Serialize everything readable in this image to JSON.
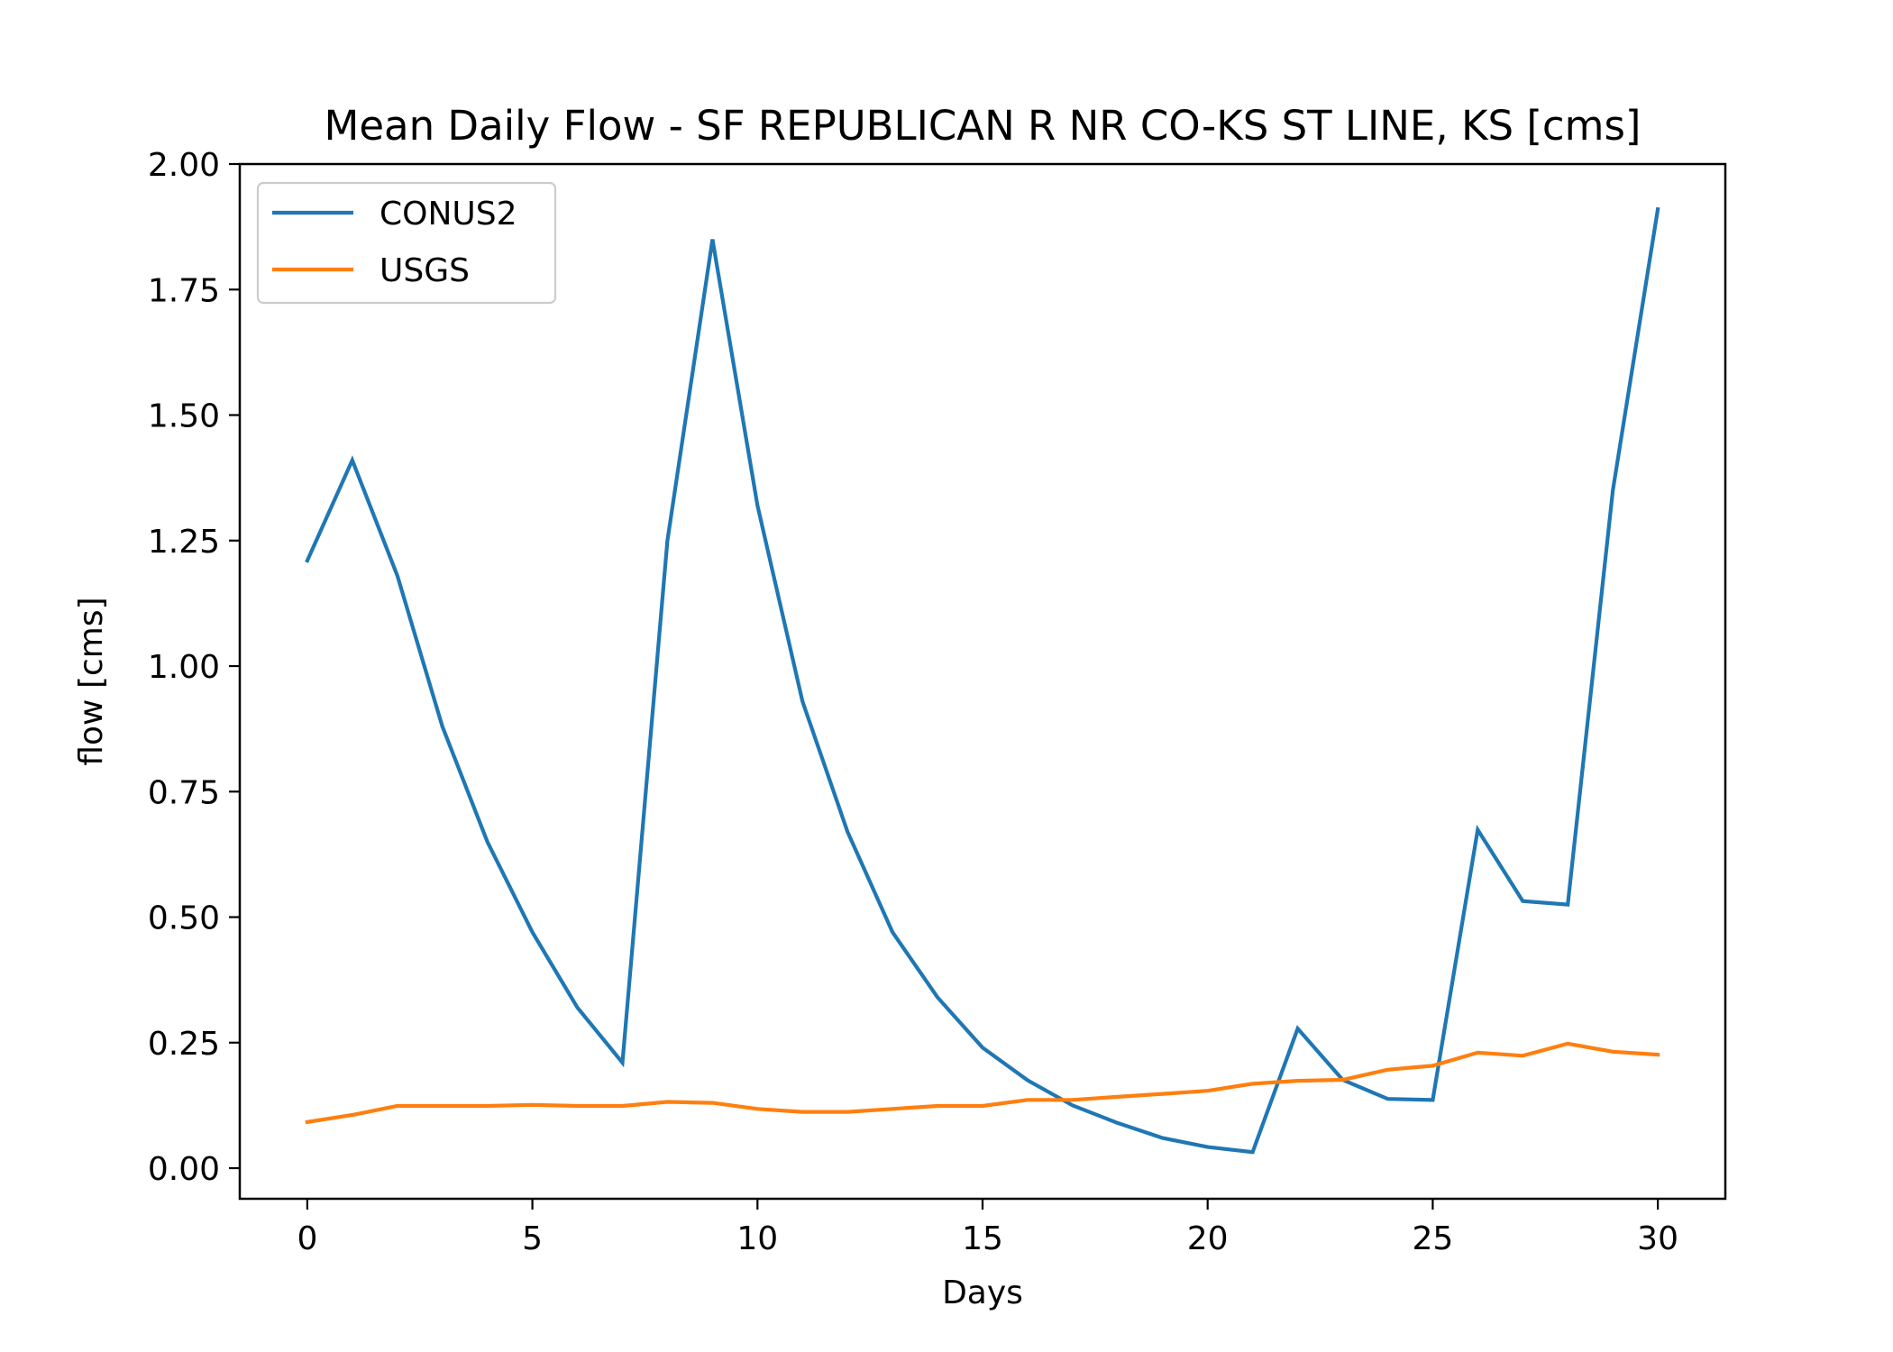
{
  "chart_data": {
    "type": "line",
    "title": "Mean Daily Flow - SF REPUBLICAN R NR CO-KS ST LINE, KS [cms]",
    "xlabel": "Days",
    "ylabel": "flow [cms]",
    "xlim": [
      -1.5,
      31.5
    ],
    "ylim": [
      -0.061,
      2.0
    ],
    "xticks": [
      0,
      5,
      10,
      15,
      20,
      25,
      30
    ],
    "xtick_labels": [
      "0",
      "5",
      "10",
      "15",
      "20",
      "25",
      "30"
    ],
    "yticks": [
      0.0,
      0.25,
      0.5,
      0.75,
      1.0,
      1.25,
      1.5,
      1.75,
      2.0
    ],
    "ytick_labels": [
      "0.00",
      "0.25",
      "0.50",
      "0.75",
      "1.00",
      "1.25",
      "1.50",
      "1.75",
      "2.00"
    ],
    "grid": false,
    "legend_position": "top-left",
    "x": [
      0,
      1,
      2,
      3,
      4,
      5,
      6,
      7,
      8,
      9,
      10,
      11,
      12,
      13,
      14,
      15,
      16,
      17,
      18,
      19,
      20,
      21,
      22,
      23,
      24,
      25,
      26,
      27,
      28,
      29,
      30
    ],
    "series": [
      {
        "name": "CONUS2",
        "color": "#1f77b4",
        "values": [
          1.21,
          1.41,
          1.18,
          0.88,
          0.65,
          0.47,
          0.32,
          0.21,
          1.25,
          1.85,
          1.32,
          0.93,
          0.67,
          0.47,
          0.34,
          0.24,
          0.175,
          0.125,
          0.09,
          0.06,
          0.042,
          0.032,
          0.278,
          0.176,
          0.138,
          0.136,
          0.674,
          0.532,
          0.525,
          1.35,
          1.91
        ]
      },
      {
        "name": "USGS",
        "color": "#ff7f0e",
        "values": [
          0.092,
          0.106,
          0.124,
          0.124,
          0.124,
          0.126,
          0.124,
          0.124,
          0.132,
          0.13,
          0.118,
          0.112,
          0.112,
          0.118,
          0.124,
          0.124,
          0.136,
          0.136,
          0.142,
          0.148,
          0.154,
          0.168,
          0.174,
          0.176,
          0.196,
          0.204,
          0.23,
          0.224,
          0.248,
          0.232,
          0.226
        ]
      }
    ]
  }
}
